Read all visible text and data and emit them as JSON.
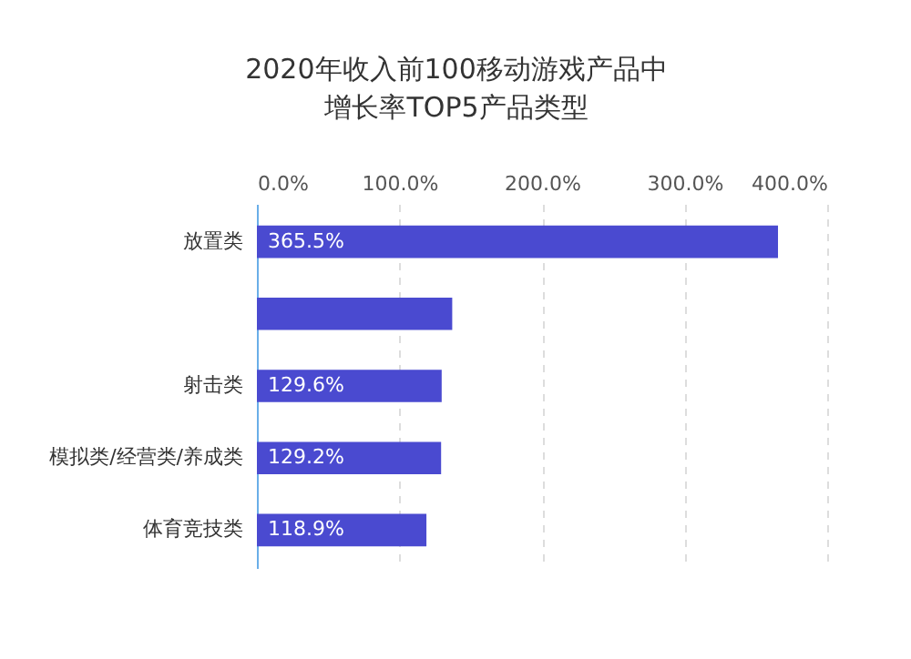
{
  "chart_data": {
    "type": "bar",
    "orientation": "horizontal",
    "title": "2020年收入前100移动游戏产品中",
    "subtitle": "增长率TOP5产品类型",
    "categories": [
      "放置类",
      null,
      "射击类",
      "模拟类/经营类/养成类",
      "体育竞技类"
    ],
    "values": [
      365.5,
      137,
      129.6,
      129.2,
      118.9
    ],
    "value_labels": [
      "365.5%",
      null,
      "129.6%",
      "129.2%",
      "118.9%"
    ],
    "color": "#4a4ad0",
    "xlim": [
      0,
      400
    ],
    "xticks": [
      {
        "value": 0,
        "label": "0.0%"
      },
      {
        "value": 100,
        "label": "100.0%"
      },
      {
        "value": 200,
        "label": "200.0%"
      },
      {
        "value": 300,
        "label": "300.0%"
      },
      {
        "value": 400,
        "label": "400.0%"
      }
    ],
    "grid": "x"
  }
}
